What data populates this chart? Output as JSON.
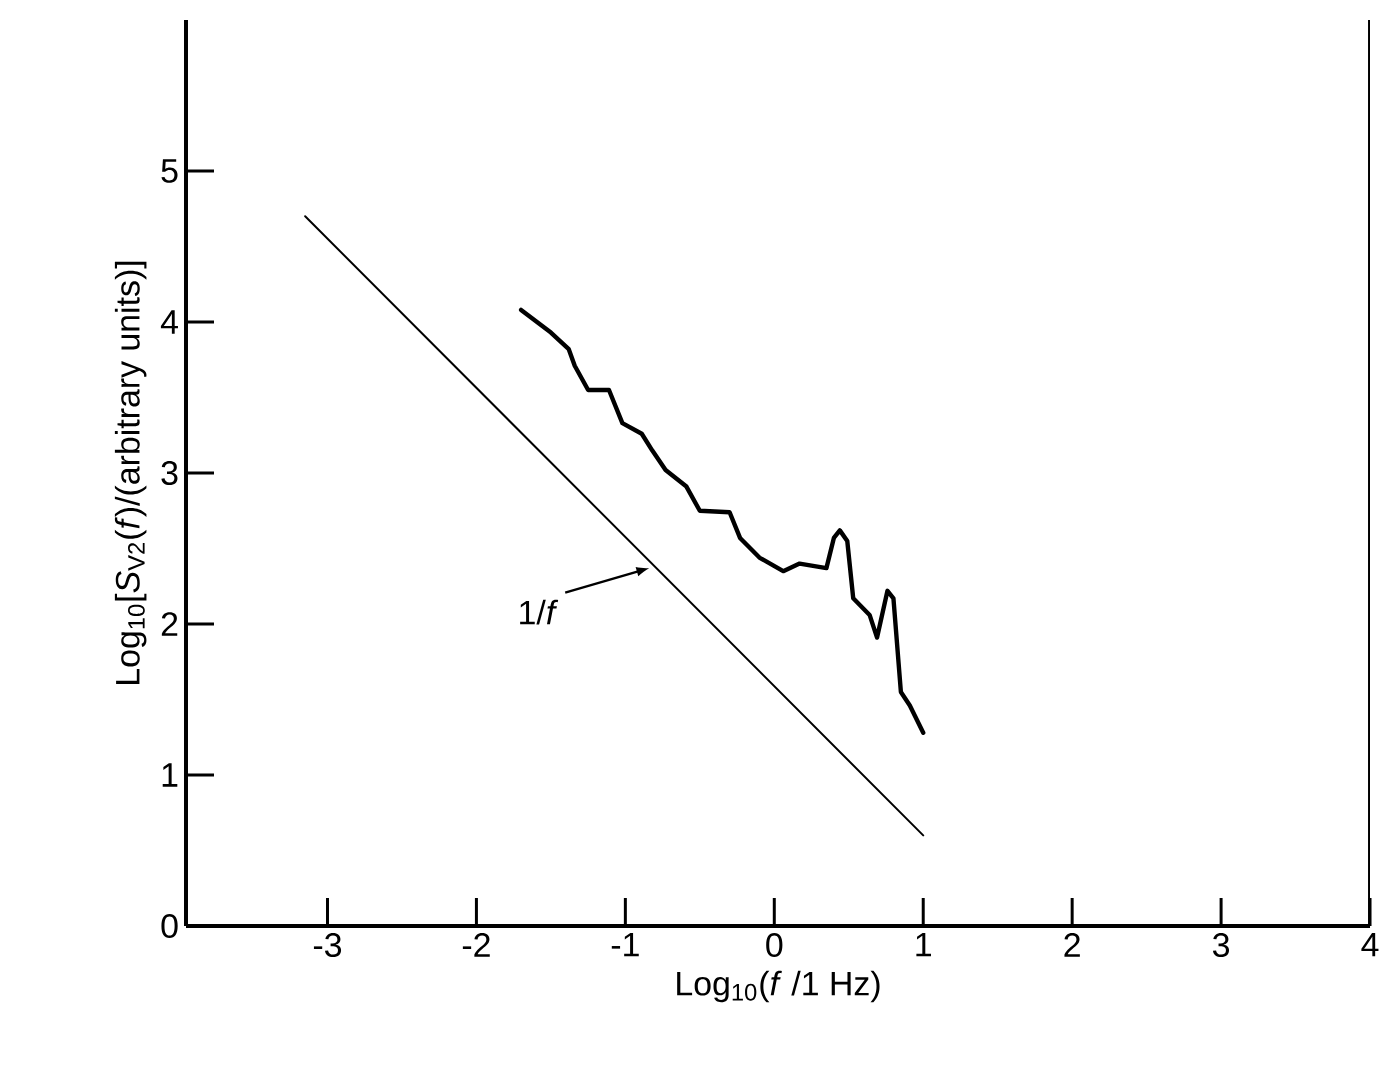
{
  "chart_data": {
    "type": "line",
    "xlabel": "Log$_{10}$(*f* /1 Hz)",
    "ylabel": "Log$_{10}$[*S*$_{V2}$(*f*)/(arbitrary units)]",
    "xlim": [
      -3.95,
      4
    ],
    "xticks": [
      -3,
      -2,
      -1,
      0,
      1,
      2,
      3,
      4
    ],
    "ylim": [
      0,
      6
    ],
    "yticks": [
      0,
      1,
      2,
      3,
      4,
      5
    ],
    "marker": "none",
    "line_style": "solid",
    "annotations": [
      {
        "text": "1/*f*",
        "x": -0.84,
        "y": 2.37
      }
    ],
    "series": [
      {
        "color": "#000000",
        "x": [
          -3.15,
          1.0
        ],
        "values": [
          4.7,
          0.6
        ]
      },
      {
        "color": "#000000",
        "x": [
          -1.7,
          -1.5,
          -1.38,
          -1.34,
          -1.25,
          -1.11,
          -1.02,
          -0.89,
          -0.82,
          -0.73,
          -0.59,
          -0.5,
          -0.3,
          -0.23,
          -0.1,
          0.06,
          0.17,
          0.35,
          0.4,
          0.44,
          0.49,
          0.53,
          0.64,
          0.69,
          0.76,
          0.8,
          0.85,
          0.91,
          1.0
        ],
        "values": [
          4.08,
          3.93,
          3.82,
          3.71,
          3.55,
          3.55,
          3.33,
          3.26,
          3.15,
          3.02,
          2.91,
          2.75,
          2.74,
          2.57,
          2.44,
          2.35,
          2.4,
          2.37,
          2.57,
          2.62,
          2.55,
          2.17,
          2.06,
          1.91,
          2.22,
          2.17,
          1.55,
          1.46,
          1.28
        ]
      }
    ]
  }
}
